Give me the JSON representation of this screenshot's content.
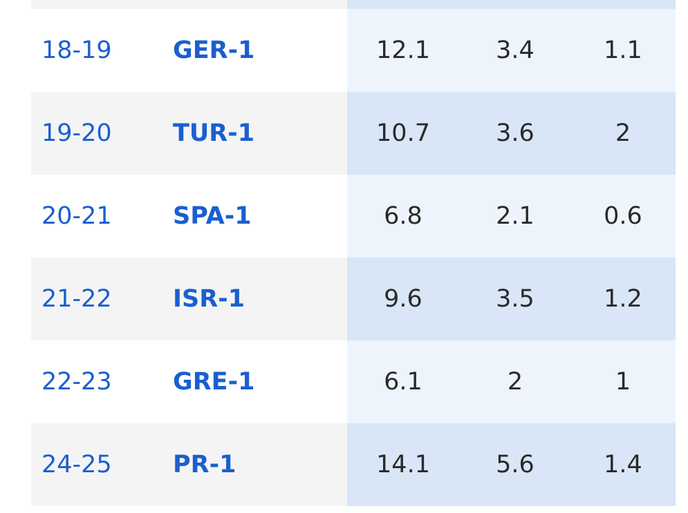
{
  "table": {
    "rows": [
      [
        "18-19",
        "GER-1",
        12.1,
        3.4,
        1.1
      ],
      [
        "19-20",
        "TUR-1",
        10.7,
        3.6,
        2
      ],
      [
        "20-21",
        "SPA-1",
        6.8,
        2.1,
        0.6
      ],
      [
        "21-22",
        "ISR-1",
        9.6,
        3.5,
        1.2
      ],
      [
        "22-23",
        "GRE-1",
        6.1,
        2,
        1
      ],
      [
        "24-25",
        "PR-1",
        14.1,
        5.6,
        1.4
      ]
    ]
  }
}
